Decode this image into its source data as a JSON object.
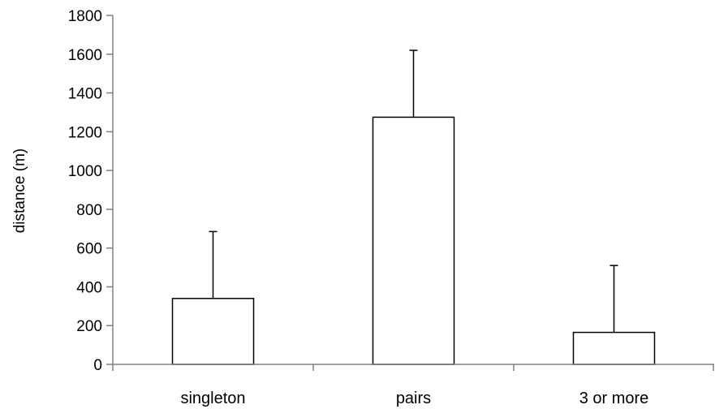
{
  "chart_data": {
    "type": "bar",
    "categories": [
      "singleton",
      "pairs",
      "3 or more"
    ],
    "values": [
      340,
      1275,
      165
    ],
    "error_plus": [
      345,
      345,
      345
    ],
    "ylabel": "distance (m)",
    "xlabel": "",
    "ylim": [
      0,
      1800
    ],
    "yticks": [
      0,
      200,
      400,
      600,
      800,
      1000,
      1200,
      1400,
      1600,
      1800
    ],
    "grid": false,
    "legend": "none",
    "colors": {
      "bar_fill": "#ffffff",
      "bar_stroke": "#000000",
      "axis": "#808080"
    }
  }
}
